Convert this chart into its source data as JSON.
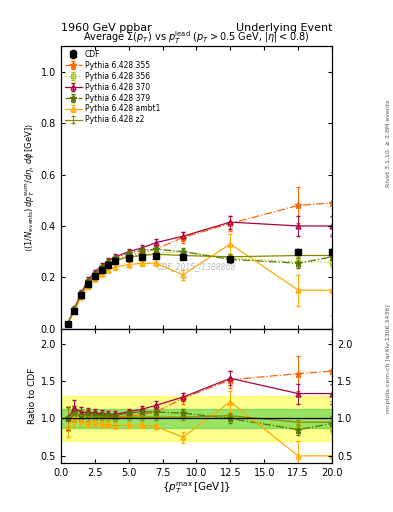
{
  "title_left": "1960 GeV ppbar",
  "title_right": "Underlying Event",
  "plot_title": "Average $\\Sigma(p_T)$ vs $p_T^\\mathrm{lead}$ ($p_T > 0.5$ GeV, $|\\eta| < 0.8$)",
  "ylabel_main": "$\\langle(1/N_\\mathrm{events})\\,dp_T^\\mathrm{sum}/d\\eta,\\,d\\phi\\,[\\mathrm{GeV}]\\rangle$",
  "ylabel_ratio": "Ratio to CDF",
  "xlabel": "$\\{p_T^\\mathrm{max}\\,[\\mathrm{GeV}]\\}$",
  "watermark": "CDF_2015_I1388868",
  "right_label": "mcplots.cern.ch [arXiv:1306.3436]",
  "right_label2": "Rivet 3.1.10, ≥ 2.8M events",
  "cdf_x": [
    0.5,
    1.0,
    1.5,
    2.0,
    2.5,
    3.0,
    3.5,
    4.0,
    5.0,
    6.0,
    7.0,
    9.0,
    12.5,
    17.5,
    20.0
  ],
  "cdf_y": [
    0.02,
    0.07,
    0.13,
    0.175,
    0.205,
    0.23,
    0.25,
    0.265,
    0.275,
    0.28,
    0.285,
    0.28,
    0.27,
    0.3,
    0.3
  ],
  "cdf_yerr": [
    0.003,
    0.007,
    0.01,
    0.01,
    0.01,
    0.01,
    0.01,
    0.01,
    0.01,
    0.01,
    0.01,
    0.01,
    0.01,
    0.01,
    0.01
  ],
  "p355_x": [
    0.5,
    1.0,
    1.5,
    2.0,
    2.5,
    3.0,
    3.5,
    4.0,
    5.0,
    6.0,
    7.0,
    9.0,
    12.5,
    17.5,
    20.0
  ],
  "p355_y": [
    0.02,
    0.075,
    0.135,
    0.185,
    0.215,
    0.24,
    0.255,
    0.27,
    0.285,
    0.295,
    0.31,
    0.355,
    0.41,
    0.48,
    0.49
  ],
  "p355_yerr": [
    0.003,
    0.007,
    0.01,
    0.01,
    0.01,
    0.01,
    0.01,
    0.01,
    0.01,
    0.01,
    0.015,
    0.02,
    0.03,
    0.07,
    0.12
  ],
  "p356_x": [
    0.5,
    1.0,
    1.5,
    2.0,
    2.5,
    3.0,
    3.5,
    4.0,
    5.0,
    6.0,
    7.0,
    9.0,
    12.5,
    17.5,
    20.0
  ],
  "p356_y": [
    0.02,
    0.075,
    0.135,
    0.18,
    0.21,
    0.235,
    0.25,
    0.265,
    0.28,
    0.285,
    0.295,
    0.3,
    0.275,
    0.26,
    0.26
  ],
  "p356_yerr": [
    0.003,
    0.007,
    0.01,
    0.01,
    0.01,
    0.01,
    0.01,
    0.01,
    0.01,
    0.01,
    0.01,
    0.01,
    0.012,
    0.02,
    0.02
  ],
  "p370_x": [
    0.5,
    1.0,
    1.5,
    2.0,
    2.5,
    3.0,
    3.5,
    4.0,
    5.0,
    6.0,
    7.0,
    9.0,
    12.5,
    17.5,
    20.0
  ],
  "p370_y": [
    0.02,
    0.08,
    0.14,
    0.19,
    0.22,
    0.245,
    0.265,
    0.28,
    0.3,
    0.315,
    0.335,
    0.36,
    0.415,
    0.4,
    0.4
  ],
  "p370_yerr": [
    0.003,
    0.007,
    0.01,
    0.01,
    0.01,
    0.01,
    0.01,
    0.01,
    0.01,
    0.01,
    0.015,
    0.015,
    0.025,
    0.04,
    0.04
  ],
  "p379_x": [
    0.5,
    1.0,
    1.5,
    2.0,
    2.5,
    3.0,
    3.5,
    4.0,
    5.0,
    6.0,
    7.0,
    9.0,
    12.5,
    17.5,
    20.0
  ],
  "p379_y": [
    0.02,
    0.075,
    0.135,
    0.185,
    0.215,
    0.24,
    0.26,
    0.275,
    0.295,
    0.305,
    0.31,
    0.3,
    0.27,
    0.255,
    0.28
  ],
  "p379_yerr": [
    0.003,
    0.007,
    0.01,
    0.01,
    0.01,
    0.01,
    0.01,
    0.01,
    0.01,
    0.01,
    0.01,
    0.015,
    0.015,
    0.02,
    0.03
  ],
  "pambt1_x": [
    0.5,
    1.0,
    1.5,
    2.0,
    2.5,
    3.0,
    3.5,
    4.0,
    5.0,
    6.0,
    7.0,
    9.0,
    12.5,
    17.5,
    20.0
  ],
  "pambt1_y": [
    0.018,
    0.07,
    0.125,
    0.165,
    0.195,
    0.215,
    0.23,
    0.24,
    0.25,
    0.255,
    0.255,
    0.21,
    0.33,
    0.15,
    0.15
  ],
  "pambt1_yerr": [
    0.003,
    0.007,
    0.01,
    0.01,
    0.01,
    0.01,
    0.01,
    0.01,
    0.01,
    0.01,
    0.01,
    0.02,
    0.04,
    0.06,
    0.1
  ],
  "pz2_x": [
    0.5,
    1.0,
    1.5,
    2.0,
    2.5,
    3.0,
    3.5,
    4.0,
    5.0,
    6.0,
    7.0,
    9.0,
    12.5,
    17.5,
    20.0
  ],
  "pz2_y": [
    0.02,
    0.075,
    0.135,
    0.18,
    0.21,
    0.235,
    0.255,
    0.265,
    0.28,
    0.285,
    0.29,
    0.285,
    0.28,
    0.285,
    0.285
  ],
  "pz2_yerr": [
    0.003,
    0.007,
    0.01,
    0.01,
    0.01,
    0.01,
    0.01,
    0.01,
    0.01,
    0.01,
    0.01,
    0.01,
    0.01,
    0.01,
    0.015
  ],
  "color_cdf": "#000000",
  "color_355": "#FF6600",
  "color_356": "#99CC00",
  "color_370": "#AA0044",
  "color_379": "#557700",
  "color_ambt1": "#FFAA00",
  "color_z2": "#888800",
  "xlim": [
    0,
    20
  ],
  "ylim_main": [
    0,
    1.1
  ],
  "ylim_ratio": [
    0.4,
    2.2
  ],
  "yticks_main": [
    0.0,
    0.2,
    0.4,
    0.6,
    0.8,
    1.0
  ],
  "yticks_ratio": [
    0.5,
    1.0,
    1.5,
    2.0
  ]
}
